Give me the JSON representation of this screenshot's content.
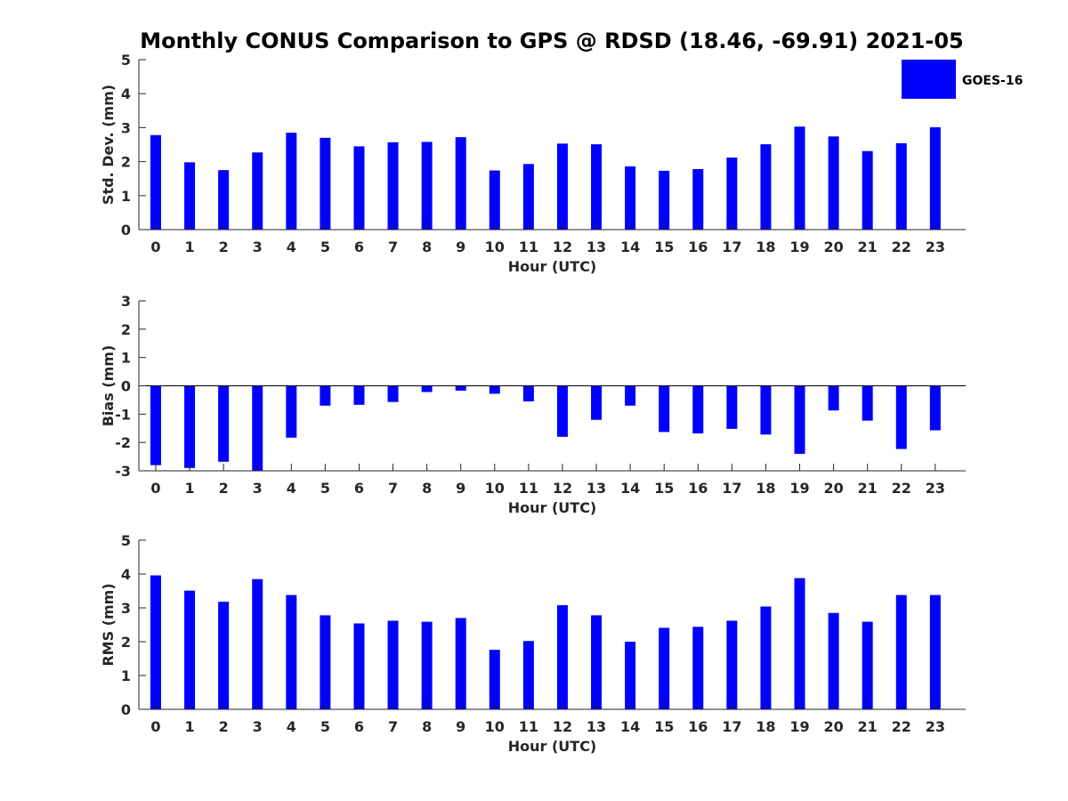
{
  "figure": {
    "title": "Monthly CONUS Comparison to GPS @ RDSD (18.46, -69.91) 2021-05",
    "legend": {
      "label": "GOES-16",
      "color": "#0000ff",
      "placement": "top-right"
    }
  },
  "chart_data": [
    {
      "type": "bar",
      "categories": [
        "0",
        "1",
        "2",
        "3",
        "4",
        "5",
        "6",
        "7",
        "8",
        "9",
        "10",
        "11",
        "12",
        "13",
        "14",
        "15",
        "16",
        "17",
        "18",
        "19",
        "20",
        "21",
        "22",
        "23"
      ],
      "series": [
        {
          "name": "GOES-16",
          "color": "#0000ff",
          "values": [
            2.78,
            1.98,
            1.75,
            2.27,
            2.85,
            2.7,
            2.45,
            2.57,
            2.58,
            2.72,
            1.74,
            1.93,
            2.53,
            2.51,
            1.86,
            1.73,
            1.78,
            2.12,
            2.51,
            3.03,
            2.74,
            2.31,
            2.54,
            3.01
          ]
        }
      ],
      "xlabel": "Hour (UTC)",
      "ylabel": "Std. Dev. (mm)",
      "ylim": [
        0,
        5
      ],
      "yticks": [
        0,
        1,
        2,
        3,
        4,
        5
      ],
      "grid": false
    },
    {
      "type": "bar",
      "categories": [
        "0",
        "1",
        "2",
        "3",
        "4",
        "5",
        "6",
        "7",
        "8",
        "9",
        "10",
        "11",
        "12",
        "13",
        "14",
        "15",
        "16",
        "17",
        "18",
        "19",
        "20",
        "21",
        "22",
        "23"
      ],
      "series": [
        {
          "name": "GOES-16",
          "color": "#0000ff",
          "values": [
            -2.8,
            -2.9,
            -2.68,
            -3.0,
            -1.83,
            -0.7,
            -0.67,
            -0.57,
            -0.22,
            -0.17,
            -0.28,
            -0.55,
            -1.8,
            -1.2,
            -0.7,
            -1.63,
            -1.68,
            -1.52,
            -1.72,
            -2.4,
            -0.87,
            -1.23,
            -2.23,
            -1.57
          ]
        }
      ],
      "xlabel": "Hour (UTC)",
      "ylabel": "Bias (mm)",
      "ylim": [
        -3,
        3
      ],
      "yticks": [
        -3,
        -2,
        -1,
        0,
        1,
        2,
        3
      ],
      "grid": false
    },
    {
      "type": "bar",
      "categories": [
        "0",
        "1",
        "2",
        "3",
        "4",
        "5",
        "6",
        "7",
        "8",
        "9",
        "10",
        "11",
        "12",
        "13",
        "14",
        "15",
        "16",
        "17",
        "18",
        "19",
        "20",
        "21",
        "22",
        "23"
      ],
      "series": [
        {
          "name": "GOES-16",
          "color": "#0000ff",
          "values": [
            3.96,
            3.51,
            3.18,
            3.85,
            3.38,
            2.78,
            2.54,
            2.62,
            2.59,
            2.7,
            1.76,
            2.02,
            3.08,
            2.78,
            2.0,
            2.41,
            2.44,
            2.62,
            3.04,
            3.88,
            2.85,
            2.59,
            3.38,
            3.38
          ]
        }
      ],
      "xlabel": "Hour (UTC)",
      "ylabel": "RMS (mm)",
      "ylim": [
        0,
        5
      ],
      "yticks": [
        0,
        1,
        2,
        3,
        4,
        5
      ],
      "grid": false
    }
  ]
}
